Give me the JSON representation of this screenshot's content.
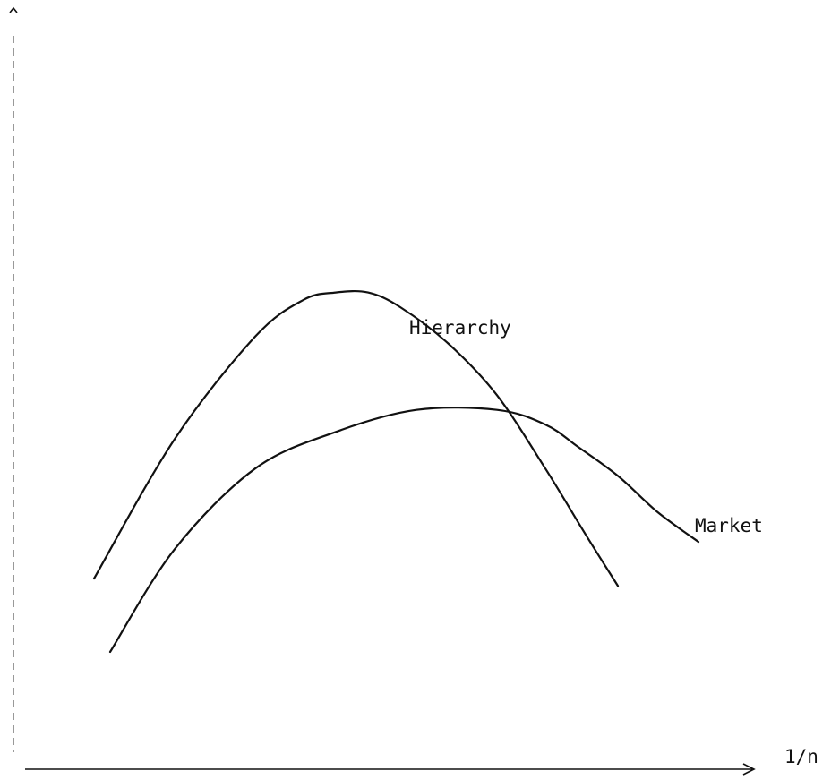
{
  "chart_data": {
    "type": "line",
    "title": "",
    "xlabel": "1/n",
    "ylabel": "",
    "grid": false,
    "legend": "none",
    "series": [
      {
        "name": "Hierarchy",
        "points": [
          [
            0.1,
            0.26
          ],
          [
            0.2,
            0.45
          ],
          [
            0.3,
            0.59
          ],
          [
            0.36,
            0.64
          ],
          [
            0.4,
            0.65
          ],
          [
            0.44,
            0.65
          ],
          [
            0.48,
            0.63
          ],
          [
            0.54,
            0.58
          ],
          [
            0.6,
            0.51
          ],
          [
            0.66,
            0.41
          ],
          [
            0.71,
            0.32
          ],
          [
            0.75,
            0.25
          ]
        ]
      },
      {
        "name": "Market",
        "points": [
          [
            0.12,
            0.16
          ],
          [
            0.2,
            0.3
          ],
          [
            0.3,
            0.41
          ],
          [
            0.4,
            0.46
          ],
          [
            0.5,
            0.49
          ],
          [
            0.6,
            0.49
          ],
          [
            0.66,
            0.47
          ],
          [
            0.7,
            0.44
          ],
          [
            0.75,
            0.4
          ],
          [
            0.8,
            0.35
          ],
          [
            0.85,
            0.31
          ]
        ]
      }
    ],
    "annotations": [
      {
        "text": "Hierarchy",
        "series": "Hierarchy"
      },
      {
        "text": "Market",
        "series": "Market"
      }
    ],
    "xlim": [
      0,
      1
    ],
    "ylim": [
      0,
      1
    ],
    "colors": {
      "line": "#111111",
      "axis": "#111111"
    }
  }
}
